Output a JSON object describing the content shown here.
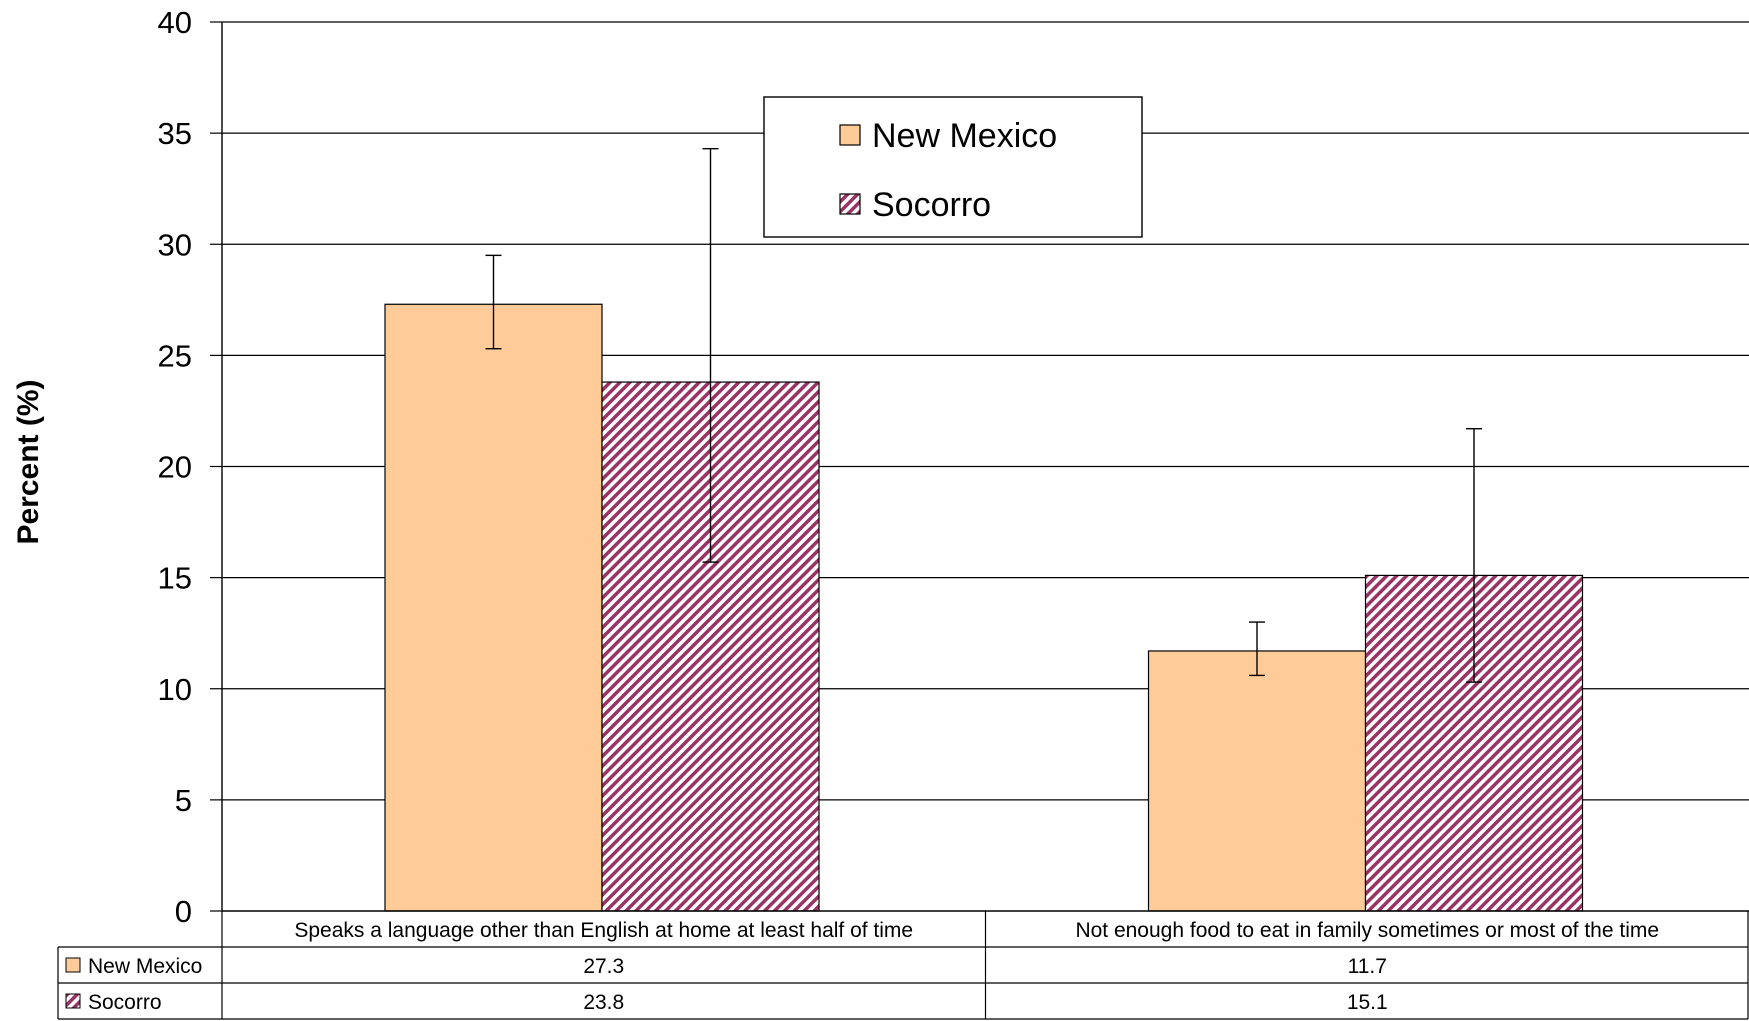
{
  "chart_data": {
    "type": "bar",
    "title": "",
    "xlabel": "",
    "ylabel": "Percent (%)",
    "ylim": [
      0,
      40
    ],
    "yticks": [
      0,
      5,
      10,
      15,
      20,
      25,
      30,
      35,
      40
    ],
    "grid": true,
    "legend_position": "top-center",
    "categories": [
      "Speaks a language other than English at home at least half of time",
      "Not enough food to eat in family sometimes or most of the time"
    ],
    "series": [
      {
        "name": "New Mexico",
        "color": "#FFCC99",
        "fill": "solid",
        "values": [
          27.3,
          11.7
        ],
        "value_labels": [
          "27.3",
          "11.7"
        ],
        "error_low": [
          25.3,
          10.6
        ],
        "error_high": [
          29.5,
          13.0
        ]
      },
      {
        "name": "Socorro",
        "color": "#993366",
        "fill": "diagonal-hatch",
        "values": [
          23.8,
          15.1
        ],
        "value_labels": [
          "23.8",
          "15.1"
        ],
        "error_low": [
          15.7,
          10.3
        ],
        "error_high": [
          34.3,
          21.7
        ]
      }
    ]
  }
}
